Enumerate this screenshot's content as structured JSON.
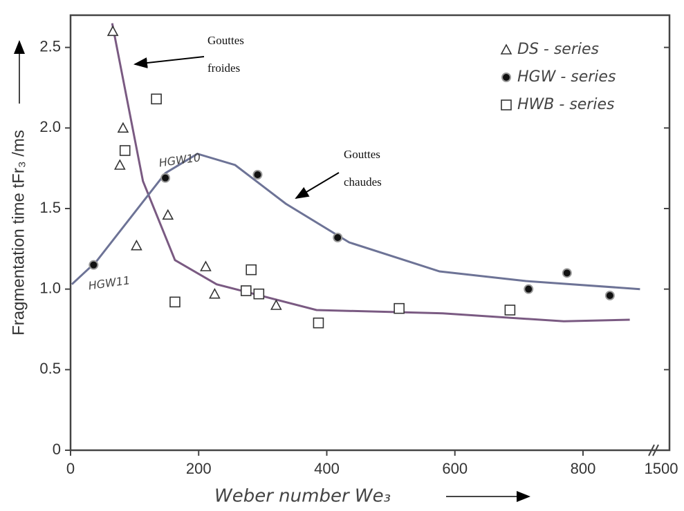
{
  "chart_data": {
    "type": "scatter",
    "x_label": "Weber number We₃",
    "y_label": "Fragmentation time tFr₃ /ms",
    "xlim": [
      0,
      935
    ],
    "ylim": [
      0,
      2.7
    ],
    "xticks": [
      0,
      200,
      400,
      600,
      800
    ],
    "x_break_label": "1500",
    "yticks": [
      0,
      0.5,
      {
        "value": 1.0,
        "label": "1.0"
      },
      1.5,
      {
        "value": 2.0,
        "label": "2.0"
      },
      2.5
    ],
    "series": [
      {
        "name": "DS - series",
        "marker": "triangle",
        "color": "#333333",
        "x": [
          66,
          82,
          77,
          103,
          152,
          211,
          225,
          321
        ],
        "y": [
          2.6,
          2.0,
          1.77,
          1.27,
          1.46,
          1.14,
          0.97,
          0.9
        ]
      },
      {
        "name": "HGW - series",
        "marker": "dot",
        "color": "#111111",
        "x": [
          36,
          148,
          292,
          417,
          715,
          775,
          842
        ],
        "y": [
          1.15,
          1.69,
          1.71,
          1.32,
          1.0,
          1.1,
          0.96
        ]
      },
      {
        "name": "HWB - series",
        "marker": "square",
        "color": "#333333",
        "x": [
          134,
          85,
          163,
          274,
          282,
          294,
          387,
          513,
          686
        ],
        "y": [
          2.18,
          1.86,
          0.92,
          0.99,
          1.12,
          0.97,
          0.79,
          0.88,
          0.87
        ]
      }
    ],
    "curves": [
      {
        "color": "#7a5a82",
        "x": [
          65,
          113,
          163,
          228,
          384,
          581,
          770,
          873
        ],
        "y": [
          2.65,
          1.67,
          1.18,
          1.03,
          0.87,
          0.85,
          0.8,
          0.81
        ]
      },
      {
        "color": "#6d7396",
        "x": [
          2,
          40,
          148,
          198,
          257,
          336,
          435,
          576,
          711,
          889
        ],
        "y": [
          1.03,
          1.17,
          1.72,
          1.84,
          1.77,
          1.53,
          1.29,
          1.11,
          1.05,
          1.0
        ]
      }
    ],
    "annotations": [
      [
        "Gouttes",
        "froides"
      ],
      [
        "Gouttes",
        "chaudes"
      ]
    ],
    "handwritten_labels": [
      "HGW10",
      "HGW11"
    ]
  }
}
